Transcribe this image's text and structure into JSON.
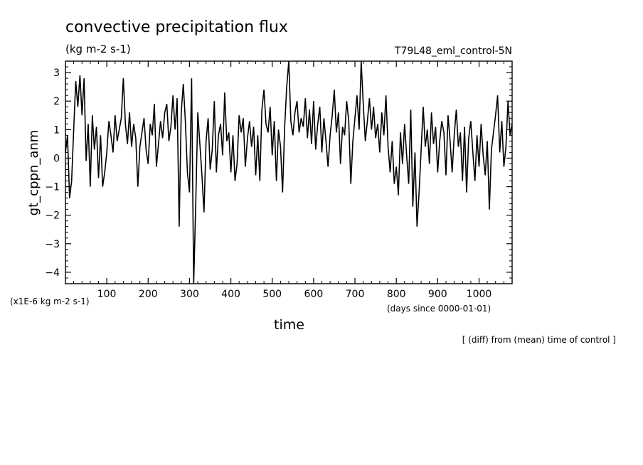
{
  "header": {
    "title": "convective precipitation flux",
    "units": "(kg m-2 s-1)",
    "run_label": "T79L48_eml_control-5N"
  },
  "footer": {
    "scale_note": "(x1E-6 kg m-2 s-1)",
    "x_units": "(days since 0000-01-01)",
    "caption": "[ (diff) from (mean) time of control ]"
  },
  "chart_data": {
    "type": "line",
    "title": "convective precipitation flux",
    "subtitle": "(kg m-2 s-1)",
    "xlabel": "time",
    "ylabel": "gt_cppn_anm",
    "xlim": [
      0,
      1080
    ],
    "ylim": [
      -4.4,
      3.4
    ],
    "x_ticks": [
      100,
      200,
      300,
      400,
      500,
      600,
      700,
      800,
      900,
      1000
    ],
    "x_tick_labels": [
      "100",
      "200",
      "300",
      "400",
      "500",
      "600",
      "700",
      "800",
      "900",
      "1000"
    ],
    "y_ticks": [
      -4,
      -3,
      -2,
      -1,
      0,
      1,
      2,
      3
    ],
    "y_tick_labels": [
      "−4",
      "−3",
      "−2",
      "−1",
      "0",
      "1",
      "2",
      "3"
    ],
    "grid": false,
    "series": [
      {
        "values": [
          [
            0,
            0.2
          ],
          [
            5,
            0.8
          ],
          [
            10,
            -1.4
          ],
          [
            15,
            -0.8
          ],
          [
            20,
            1.0
          ],
          [
            25,
            2.7
          ],
          [
            30,
            1.8
          ],
          [
            35,
            2.9
          ],
          [
            40,
            1.5
          ],
          [
            45,
            2.8
          ],
          [
            50,
            -0.1
          ],
          [
            55,
            1.2
          ],
          [
            60,
            -1.0
          ],
          [
            65,
            1.5
          ],
          [
            70,
            0.3
          ],
          [
            75,
            1.1
          ],
          [
            80,
            -0.7
          ],
          [
            85,
            0.8
          ],
          [
            90,
            -1.0
          ],
          [
            95,
            -0.5
          ],
          [
            100,
            0.2
          ],
          [
            105,
            1.3
          ],
          [
            110,
            0.8
          ],
          [
            115,
            0.2
          ],
          [
            120,
            1.5
          ],
          [
            125,
            0.6
          ],
          [
            130,
            1.0
          ],
          [
            135,
            1.4
          ],
          [
            140,
            2.8
          ],
          [
            145,
            1.2
          ],
          [
            150,
            0.5
          ],
          [
            155,
            1.6
          ],
          [
            160,
            0.4
          ],
          [
            165,
            1.2
          ],
          [
            170,
            0.7
          ],
          [
            175,
            -1.0
          ],
          [
            180,
            0.4
          ],
          [
            185,
            0.9
          ],
          [
            190,
            1.4
          ],
          [
            195,
            0.3
          ],
          [
            200,
            -0.2
          ],
          [
            205,
            1.2
          ],
          [
            210,
            0.8
          ],
          [
            215,
            1.9
          ],
          [
            220,
            -0.3
          ],
          [
            225,
            0.5
          ],
          [
            230,
            1.3
          ],
          [
            235,
            0.7
          ],
          [
            240,
            1.6
          ],
          [
            245,
            1.9
          ],
          [
            250,
            0.6
          ],
          [
            255,
            1.1
          ],
          [
            260,
            2.2
          ],
          [
            265,
            1.0
          ],
          [
            270,
            2.1
          ],
          [
            275,
            -2.4
          ],
          [
            280,
            1.6
          ],
          [
            285,
            2.6
          ],
          [
            290,
            1.3
          ],
          [
            295,
            -0.5
          ],
          [
            300,
            -1.2
          ],
          [
            305,
            2.8
          ],
          [
            310,
            -4.4
          ],
          [
            315,
            -1.6
          ],
          [
            320,
            1.6
          ],
          [
            325,
            0.5
          ],
          [
            330,
            -0.6
          ],
          [
            335,
            -1.9
          ],
          [
            340,
            0.6
          ],
          [
            345,
            1.4
          ],
          [
            350,
            -0.4
          ],
          [
            355,
            0.3
          ],
          [
            360,
            2.0
          ],
          [
            365,
            -0.5
          ],
          [
            370,
            0.8
          ],
          [
            375,
            1.2
          ],
          [
            380,
            0.1
          ],
          [
            385,
            2.3
          ],
          [
            390,
            0.6
          ],
          [
            395,
            0.9
          ],
          [
            400,
            -0.5
          ],
          [
            405,
            0.8
          ],
          [
            410,
            -0.8
          ],
          [
            415,
            -0.2
          ],
          [
            420,
            1.5
          ],
          [
            425,
            0.9
          ],
          [
            430,
            1.4
          ],
          [
            435,
            -0.3
          ],
          [
            440,
            0.7
          ],
          [
            445,
            1.3
          ],
          [
            450,
            0.4
          ],
          [
            455,
            1.1
          ],
          [
            460,
            -0.6
          ],
          [
            465,
            0.8
          ],
          [
            470,
            -0.8
          ],
          [
            475,
            1.7
          ],
          [
            480,
            2.4
          ],
          [
            485,
            1.2
          ],
          [
            490,
            0.9
          ],
          [
            495,
            1.8
          ],
          [
            500,
            0.1
          ],
          [
            505,
            1.3
          ],
          [
            510,
            -0.8
          ],
          [
            515,
            1.0
          ],
          [
            520,
            0.4
          ],
          [
            525,
            -1.2
          ],
          [
            530,
            1.1
          ],
          [
            535,
            2.5
          ],
          [
            540,
            3.4
          ],
          [
            545,
            1.3
          ],
          [
            550,
            0.8
          ],
          [
            555,
            1.6
          ],
          [
            560,
            2.0
          ],
          [
            565,
            0.9
          ],
          [
            570,
            1.4
          ],
          [
            575,
            1.1
          ],
          [
            580,
            2.1
          ],
          [
            585,
            0.7
          ],
          [
            590,
            1.7
          ],
          [
            595,
            0.5
          ],
          [
            600,
            2.0
          ],
          [
            605,
            0.3
          ],
          [
            610,
            1.2
          ],
          [
            615,
            1.8
          ],
          [
            620,
            0.2
          ],
          [
            625,
            1.4
          ],
          [
            630,
            0.6
          ],
          [
            635,
            -0.3
          ],
          [
            640,
            0.8
          ],
          [
            645,
            1.5
          ],
          [
            650,
            2.4
          ],
          [
            655,
            0.9
          ],
          [
            660,
            1.6
          ],
          [
            665,
            -0.2
          ],
          [
            670,
            1.1
          ],
          [
            675,
            0.8
          ],
          [
            680,
            2.0
          ],
          [
            685,
            1.3
          ],
          [
            690,
            -0.9
          ],
          [
            695,
            0.6
          ],
          [
            700,
            1.4
          ],
          [
            705,
            2.2
          ],
          [
            710,
            1.0
          ],
          [
            715,
            3.4
          ],
          [
            720,
            1.9
          ],
          [
            725,
            0.6
          ],
          [
            730,
            1.3
          ],
          [
            735,
            2.1
          ],
          [
            740,
            1.0
          ],
          [
            745,
            1.8
          ],
          [
            750,
            0.7
          ],
          [
            755,
            1.2
          ],
          [
            760,
            0.2
          ],
          [
            765,
            1.6
          ],
          [
            770,
            0.8
          ],
          [
            775,
            2.2
          ],
          [
            780,
            0.4
          ],
          [
            785,
            -0.5
          ],
          [
            790,
            0.6
          ],
          [
            795,
            -0.9
          ],
          [
            800,
            -0.3
          ],
          [
            805,
            -1.3
          ],
          [
            810,
            0.9
          ],
          [
            815,
            -0.2
          ],
          [
            820,
            1.2
          ],
          [
            825,
            0.1
          ],
          [
            830,
            -0.9
          ],
          [
            835,
            1.7
          ],
          [
            840,
            -1.7
          ],
          [
            845,
            0.2
          ],
          [
            850,
            -2.4
          ],
          [
            855,
            -1.2
          ],
          [
            860,
            0.3
          ],
          [
            865,
            1.8
          ],
          [
            870,
            0.4
          ],
          [
            875,
            1.0
          ],
          [
            880,
            -0.2
          ],
          [
            885,
            1.6
          ],
          [
            890,
            0.5
          ],
          [
            895,
            1.1
          ],
          [
            900,
            -0.5
          ],
          [
            905,
            0.6
          ],
          [
            910,
            1.3
          ],
          [
            915,
            0.9
          ],
          [
            920,
            -0.6
          ],
          [
            925,
            1.5
          ],
          [
            930,
            0.6
          ],
          [
            935,
            -0.5
          ],
          [
            940,
            0.8
          ],
          [
            945,
            1.7
          ],
          [
            950,
            0.4
          ],
          [
            955,
            0.9
          ],
          [
            960,
            -0.8
          ],
          [
            965,
            1.1
          ],
          [
            970,
            -1.2
          ],
          [
            975,
            0.7
          ],
          [
            980,
            1.3
          ],
          [
            985,
            0.2
          ],
          [
            990,
            -0.8
          ],
          [
            995,
            0.8
          ],
          [
            1000,
            -0.3
          ],
          [
            1005,
            1.2
          ],
          [
            1010,
            0.1
          ],
          [
            1015,
            -0.6
          ],
          [
            1020,
            0.6
          ],
          [
            1025,
            -1.8
          ],
          [
            1030,
            0.3
          ],
          [
            1035,
            0.9
          ],
          [
            1040,
            1.5
          ],
          [
            1045,
            2.2
          ],
          [
            1050,
            0.2
          ],
          [
            1055,
            1.3
          ],
          [
            1060,
            -0.3
          ],
          [
            1065,
            0.4
          ],
          [
            1070,
            2.0
          ],
          [
            1075,
            0.8
          ],
          [
            1080,
            1.2
          ]
        ]
      }
    ]
  }
}
